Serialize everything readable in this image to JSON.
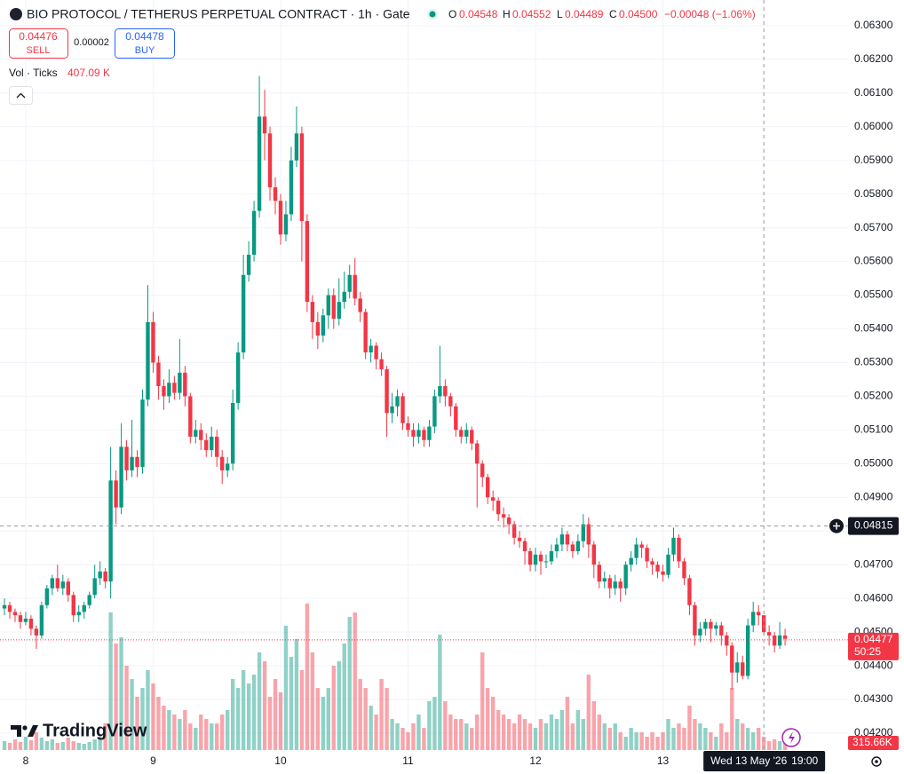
{
  "header": {
    "symbol": "BIO PROTOCOL / TETHERUS PERPETUAL CONTRACT · 1h · Gate",
    "o_label": "O",
    "o": "0.04548",
    "h_label": "H",
    "h": "0.04552",
    "l_label": "L",
    "l": "0.04489",
    "c_label": "C",
    "c": "0.04500",
    "change": "−0.00048 (−1.06%)",
    "sell_price": "0.04476",
    "sell_label": "SELL",
    "spread": "0.00002",
    "buy_price": "0.04478",
    "buy_label": "BUY",
    "indicator": "Vol · Ticks",
    "indicator_value": "407.09 K",
    "brand": "TradingView"
  },
  "chart_data": {
    "type": "candlestick",
    "open": [
      0.0457,
      0.0458,
      0.0456,
      0.0455,
      0.0453,
      0.0454,
      0.0451,
      0.0449,
      0.0458,
      0.0463,
      0.0466,
      0.0463,
      0.0465,
      0.0461,
      0.0455,
      0.0456,
      0.0458,
      0.0461,
      0.0466,
      0.0468,
      0.0465,
      0.0495,
      0.0487,
      0.0505,
      0.0498,
      0.0502,
      0.0499,
      0.0519,
      0.0542,
      0.053,
      0.0523,
      0.052,
      0.0524,
      0.0521,
      0.0527,
      0.052,
      0.0508,
      0.051,
      0.0507,
      0.0504,
      0.0508,
      0.0502,
      0.0498,
      0.05,
      0.0518,
      0.0533,
      0.0556,
      0.0562,
      0.0575,
      0.0603,
      0.0598,
      0.0582,
      0.0578,
      0.0568,
      0.0574,
      0.059,
      0.0598,
      0.0572,
      0.0548,
      0.0542,
      0.0538,
      0.0544,
      0.055,
      0.0543,
      0.0548,
      0.0551,
      0.0556,
      0.0549,
      0.0545,
      0.0533,
      0.0535,
      0.0531,
      0.0528,
      0.0515,
      0.0517,
      0.052,
      0.0512,
      0.051,
      0.0508,
      0.051,
      0.0507,
      0.0511,
      0.052,
      0.0523,
      0.052,
      0.0517,
      0.051,
      0.0508,
      0.051,
      0.0506,
      0.05,
      0.0496,
      0.049,
      0.0489,
      0.0485,
      0.0484,
      0.0482,
      0.0478,
      0.0477,
      0.0474,
      0.047,
      0.0473,
      0.0471,
      0.0471,
      0.0474,
      0.0476,
      0.0479,
      0.0476,
      0.0474,
      0.0477,
      0.0482,
      0.0476,
      0.047,
      0.0465,
      0.0466,
      0.0463,
      0.0465,
      0.0463,
      0.047,
      0.0472,
      0.0476,
      0.0475,
      0.0471,
      0.047,
      0.0468,
      0.0467,
      0.0473,
      0.0478,
      0.0471,
      0.0466,
      0.0458,
      0.0449,
      0.0451,
      0.0453,
      0.0451,
      0.0452,
      0.0449,
      0.0446,
      0.0438,
      0.0441,
      0.0437,
      0.0452,
      0.0456,
      0.0455,
      0.045,
      0.0449,
      0.0446,
      0.0449
    ],
    "high": [
      0.046,
      0.0459,
      0.0457,
      0.0456,
      0.0456,
      0.0455,
      0.0452,
      0.0459,
      0.0464,
      0.0467,
      0.047,
      0.0467,
      0.0466,
      0.0462,
      0.0458,
      0.0459,
      0.0462,
      0.047,
      0.0471,
      0.0469,
      0.0505,
      0.0498,
      0.0512,
      0.0507,
      0.0513,
      0.0504,
      0.0522,
      0.0553,
      0.0545,
      0.0532,
      0.0525,
      0.0528,
      0.0526,
      0.0537,
      0.0529,
      0.0521,
      0.0513,
      0.0512,
      0.0509,
      0.0511,
      0.051,
      0.0504,
      0.0502,
      0.0522,
      0.0536,
      0.0562,
      0.0566,
      0.0578,
      0.0615,
      0.0611,
      0.06,
      0.0585,
      0.058,
      0.0578,
      0.0594,
      0.0606,
      0.06,
      0.0574,
      0.055,
      0.0545,
      0.0546,
      0.0552,
      0.0552,
      0.0555,
      0.0557,
      0.0559,
      0.0561,
      0.0551,
      0.0546,
      0.0537,
      0.0536,
      0.0533,
      0.0529,
      0.0521,
      0.0522,
      0.0521,
      0.0514,
      0.0512,
      0.0512,
      0.0511,
      0.0513,
      0.0522,
      0.0535,
      0.0525,
      0.0521,
      0.0518,
      0.0511,
      0.0512,
      0.0511,
      0.0507,
      0.0501,
      0.0497,
      0.0492,
      0.049,
      0.0487,
      0.0485,
      0.0483,
      0.048,
      0.0478,
      0.0475,
      0.0475,
      0.0474,
      0.0473,
      0.0476,
      0.0478,
      0.0481,
      0.048,
      0.0477,
      0.0479,
      0.0485,
      0.0484,
      0.0477,
      0.0471,
      0.0468,
      0.0467,
      0.0467,
      0.0466,
      0.0471,
      0.0474,
      0.0478,
      0.0477,
      0.0476,
      0.0472,
      0.0471,
      0.047,
      0.0475,
      0.0481,
      0.0479,
      0.0472,
      0.0467,
      0.0459,
      0.0453,
      0.0454,
      0.0454,
      0.0453,
      0.0453,
      0.045,
      0.0447,
      0.0444,
      0.0443,
      0.0454,
      0.0459,
      0.0458,
      0.0455,
      0.0452,
      0.045,
      0.0453,
      0.0451
    ],
    "low": [
      0.0455,
      0.0454,
      0.0453,
      0.0451,
      0.0452,
      0.0449,
      0.0445,
      0.0448,
      0.0457,
      0.0461,
      0.0462,
      0.0461,
      0.0459,
      0.0453,
      0.0453,
      0.0454,
      0.0457,
      0.046,
      0.0464,
      0.0463,
      0.046,
      0.0482,
      0.0485,
      0.0495,
      0.0496,
      0.0496,
      0.0497,
      0.0517,
      0.0527,
      0.0519,
      0.0516,
      0.0518,
      0.0519,
      0.0519,
      0.0517,
      0.0506,
      0.0506,
      0.0504,
      0.0502,
      0.0502,
      0.0499,
      0.0494,
      0.0496,
      0.0498,
      0.0516,
      0.0531,
      0.0554,
      0.056,
      0.0573,
      0.059,
      0.0578,
      0.0574,
      0.0565,
      0.0566,
      0.0572,
      0.0588,
      0.056,
      0.0545,
      0.0537,
      0.0534,
      0.0536,
      0.054,
      0.054,
      0.0541,
      0.0546,
      0.0549,
      0.0547,
      0.0542,
      0.0531,
      0.053,
      0.0528,
      0.0526,
      0.0508,
      0.0512,
      0.0514,
      0.051,
      0.0508,
      0.0505,
      0.0506,
      0.0505,
      0.0505,
      0.0509,
      0.0518,
      0.0517,
      0.0514,
      0.0508,
      0.0506,
      0.0506,
      0.0504,
      0.0487,
      0.0493,
      0.0488,
      0.0486,
      0.0483,
      0.0481,
      0.0479,
      0.0476,
      0.0475,
      0.047,
      0.0468,
      0.0468,
      0.0467,
      0.0469,
      0.047,
      0.0472,
      0.0474,
      0.0474,
      0.0472,
      0.0473,
      0.0475,
      0.0472,
      0.0466,
      0.0463,
      0.0463,
      0.046,
      0.0461,
      0.0459,
      0.0461,
      0.0468,
      0.047,
      0.0472,
      0.0469,
      0.0467,
      0.0466,
      0.0465,
      0.0466,
      0.0471,
      0.0469,
      0.0464,
      0.0455,
      0.0446,
      0.0447,
      0.0449,
      0.0447,
      0.0449,
      0.0446,
      0.0443,
      0.0433,
      0.0435,
      0.0436,
      0.0436,
      0.045,
      0.0452,
      0.0449,
      0.0446,
      0.0444,
      0.0445,
      0.0446
    ],
    "close": [
      0.0458,
      0.0456,
      0.0455,
      0.0453,
      0.0454,
      0.0451,
      0.0449,
      0.0458,
      0.0463,
      0.0466,
      0.0463,
      0.0465,
      0.0461,
      0.0455,
      0.0456,
      0.0458,
      0.0461,
      0.0466,
      0.0468,
      0.0465,
      0.0495,
      0.0487,
      0.0505,
      0.0498,
      0.0502,
      0.0499,
      0.0519,
      0.0542,
      0.053,
      0.0523,
      0.052,
      0.0524,
      0.0521,
      0.0527,
      0.052,
      0.0508,
      0.051,
      0.0507,
      0.0504,
      0.0508,
      0.0502,
      0.0498,
      0.05,
      0.0518,
      0.0533,
      0.0556,
      0.0562,
      0.0575,
      0.0603,
      0.0598,
      0.0582,
      0.0578,
      0.0568,
      0.0574,
      0.059,
      0.0598,
      0.0572,
      0.0548,
      0.0542,
      0.0538,
      0.0544,
      0.055,
      0.0543,
      0.0548,
      0.0551,
      0.0556,
      0.0549,
      0.0545,
      0.0533,
      0.0535,
      0.0531,
      0.0528,
      0.0515,
      0.0517,
      0.052,
      0.0512,
      0.051,
      0.0508,
      0.051,
      0.0507,
      0.0511,
      0.052,
      0.0523,
      0.052,
      0.0517,
      0.051,
      0.0508,
      0.051,
      0.0506,
      0.05,
      0.0496,
      0.049,
      0.0489,
      0.0485,
      0.0484,
      0.0482,
      0.0478,
      0.0477,
      0.0474,
      0.047,
      0.0473,
      0.0471,
      0.0471,
      0.0474,
      0.0476,
      0.0479,
      0.0476,
      0.0474,
      0.0477,
      0.0482,
      0.0476,
      0.047,
      0.0465,
      0.0466,
      0.0463,
      0.0465,
      0.0463,
      0.047,
      0.0472,
      0.0476,
      0.0475,
      0.0471,
      0.047,
      0.0468,
      0.0467,
      0.0473,
      0.0478,
      0.0471,
      0.0466,
      0.0458,
      0.0449,
      0.0451,
      0.0453,
      0.0451,
      0.0452,
      0.0449,
      0.0446,
      0.0438,
      0.0441,
      0.0437,
      0.0452,
      0.0456,
      0.0455,
      0.045,
      0.0449,
      0.0446,
      0.0449,
      0.0448
    ],
    "volume": [
      400,
      320,
      480,
      360,
      600,
      440,
      800,
      560,
      400,
      480,
      320,
      360,
      560,
      400,
      320,
      280,
      360,
      480,
      600,
      1200,
      6200,
      4800,
      5080,
      3800,
      3200,
      2400,
      2800,
      3600,
      3000,
      2400,
      2000,
      1800,
      1600,
      1400,
      1800,
      1200,
      1000,
      1600,
      1400,
      1200,
      1200,
      1600,
      1800,
      3200,
      2800,
      3600,
      3000,
      3400,
      4400,
      4000,
      2400,
      3200,
      2600,
      5600,
      4200,
      5000,
      3600,
      6600,
      4400,
      2800,
      2400,
      2800,
      3800,
      4000,
      4800,
      6000,
      6200,
      3200,
      2800,
      2000,
      1600,
      3200,
      2800,
      1400,
      1200,
      1000,
      800,
      1200,
      1600,
      1000,
      2200,
      2400,
      5200,
      2200,
      1600,
      1400,
      1400,
      1200,
      1000,
      1600,
      4400,
      2800,
      2400,
      1800,
      1600,
      1400,
      1200,
      1600,
      1400,
      1200,
      1000,
      1400,
      1200,
      1600,
      1400,
      1800,
      2400,
      1200,
      1800,
      1400,
      3400,
      2200,
      1600,
      1200,
      1000,
      1200,
      800,
      600,
      1000,
      800,
      800,
      600,
      800,
      600,
      800,
      1400,
      1000,
      1200,
      1000,
      2000,
      1400,
      1200,
      1000,
      800,
      600,
      1200,
      800,
      2800,
      1400,
      1200,
      1000,
      800,
      1000,
      600,
      400,
      480,
      400,
      315.66
    ],
    "volume_label": "315.66K",
    "up_color": "#089981",
    "down_color": "#f23645",
    "xlim": [
      -0.84,
      158.86
    ],
    "ylim": [
      0.0415,
      0.06376
    ],
    "xticks": [
      {
        "value": 4,
        "label": "8"
      },
      {
        "value": 28,
        "label": "9"
      },
      {
        "value": 52,
        "label": "10"
      },
      {
        "value": 76,
        "label": "11"
      },
      {
        "value": 100,
        "label": "12"
      },
      {
        "value": 124,
        "label": "13"
      }
    ],
    "yticks": [
      {
        "value": 0.042,
        "label": "0.04200"
      },
      {
        "value": 0.043,
        "label": "0.04300"
      },
      {
        "value": 0.044,
        "label": "0.04400"
      },
      {
        "value": 0.045,
        "label": "0.04500"
      },
      {
        "value": 0.046,
        "label": "0.04600"
      },
      {
        "value": 0.047,
        "label": "0.04700"
      },
      {
        "value": 0.048,
        "label": "0.04800"
      },
      {
        "value": 0.049,
        "label": "0.04900"
      },
      {
        "value": 0.05,
        "label": "0.05000"
      },
      {
        "value": 0.051,
        "label": "0.05100"
      },
      {
        "value": 0.052,
        "label": "0.05200"
      },
      {
        "value": 0.053,
        "label": "0.05300"
      },
      {
        "value": 0.054,
        "label": "0.05400"
      },
      {
        "value": 0.055,
        "label": "0.05500"
      },
      {
        "value": 0.056,
        "label": "0.05600"
      },
      {
        "value": 0.057,
        "label": "0.05700"
      },
      {
        "value": 0.058,
        "label": "0.05800"
      },
      {
        "value": 0.059,
        "label": "0.05900"
      },
      {
        "value": 0.06,
        "label": "0.06000"
      },
      {
        "value": 0.061,
        "label": "0.06100"
      },
      {
        "value": 0.062,
        "label": "0.06200"
      },
      {
        "value": 0.063,
        "label": "0.06300"
      }
    ],
    "last_price": {
      "value": 0.04477,
      "label": "0.04477",
      "countdown": "50:25"
    },
    "crosshair": {
      "x": 143,
      "date": "Wed 13 May '26",
      "time": "19:00",
      "y": {
        "value": 0.04815,
        "label": "0.04815"
      }
    },
    "grid": true
  }
}
